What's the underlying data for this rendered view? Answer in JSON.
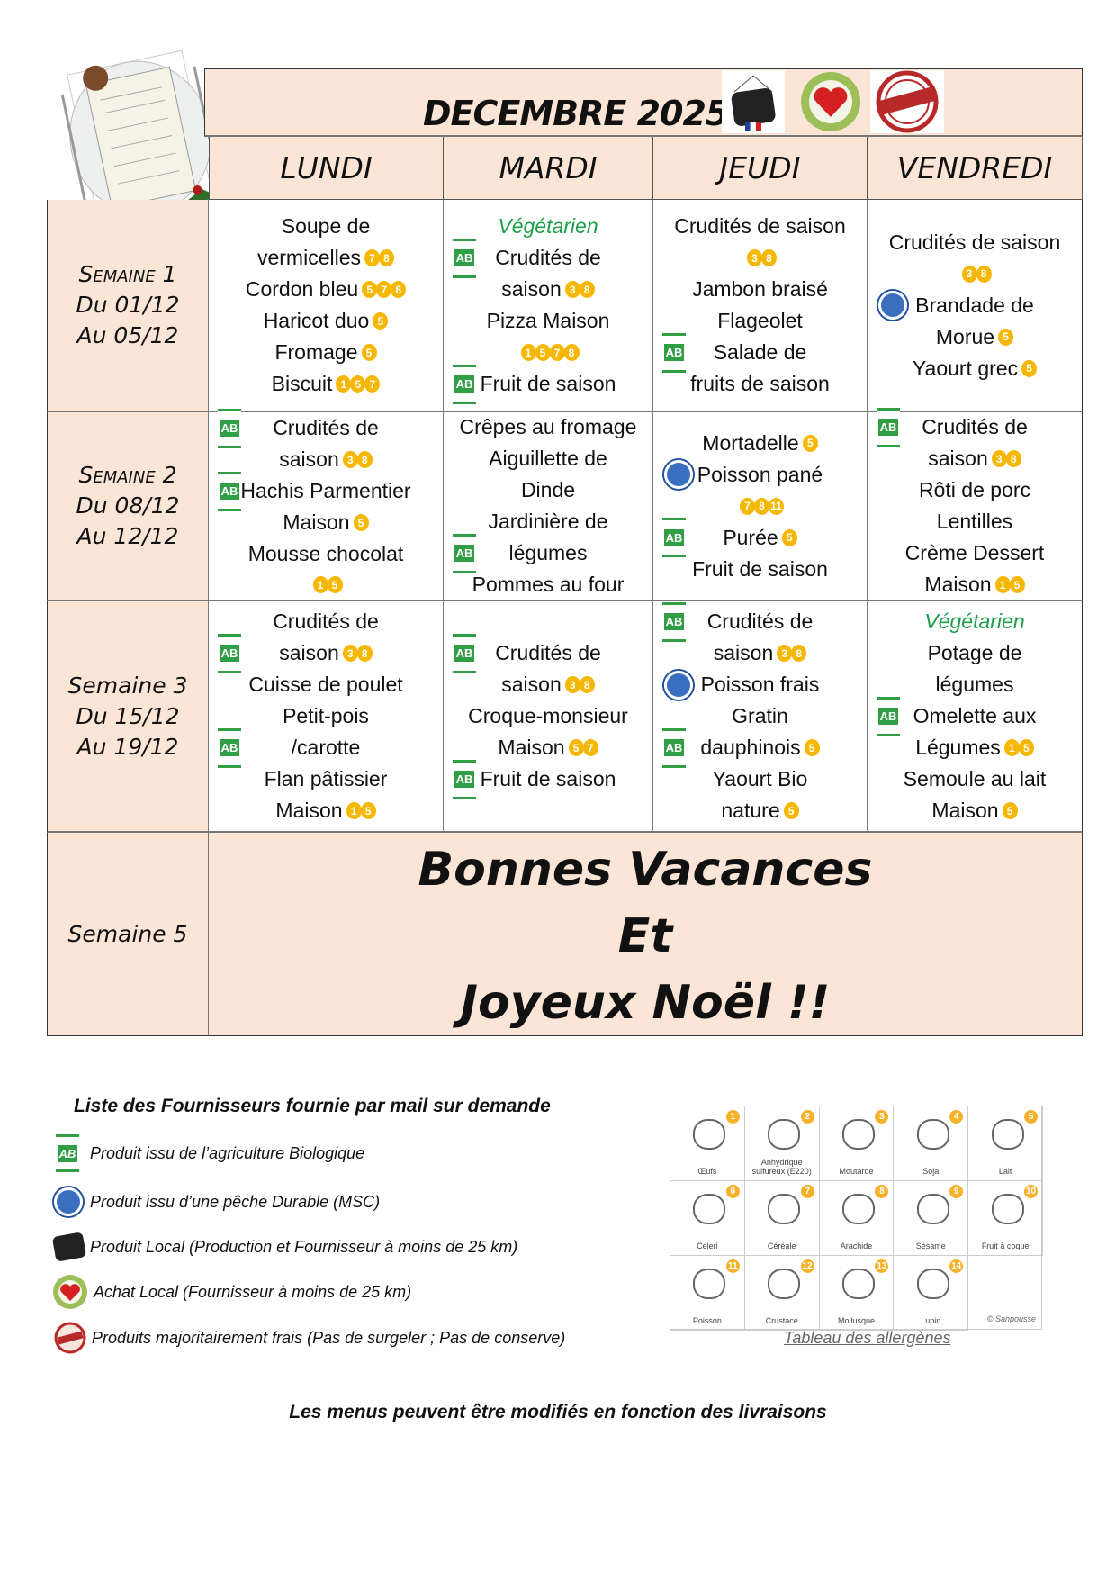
{
  "header": {
    "title": "DECEMBRE 2025",
    "logos": [
      "produits-locaux-logo",
      "moi-j-aime-acheter-local-logo",
      "produit-frais-logo"
    ]
  },
  "days": [
    "LUNDI",
    "MARDI",
    "JEUDI",
    "VENDREDI"
  ],
  "weeks": [
    {
      "label": [
        "Semaine 1",
        "Du  01/12",
        "Au  05/12"
      ],
      "smallcaps": true,
      "cells": [
        [
          {
            "t": "Soupe de"
          },
          {
            "t": "vermicelles",
            "a": [
              "7",
              "8"
            ]
          },
          {
            "t": "Cordon bleu",
            "a": [
              "5",
              "7",
              "8"
            ]
          },
          {
            "t": "Haricot duo",
            "a": [
              "5"
            ]
          },
          {
            "t": "Fromage",
            "a": [
              "5"
            ]
          },
          {
            "t": "Biscuit",
            "a": [
              "1",
              "5",
              "7"
            ]
          }
        ],
        [
          {
            "t": "Végétarien",
            "green": true
          },
          {
            "t": "Crudités de",
            "i": "bio"
          },
          {
            "t": "saison",
            "a": [
              "3",
              "8"
            ]
          },
          {
            "t": "Pizza Maison"
          },
          {
            "t": "",
            "a": [
              "1",
              "5",
              "7",
              "8"
            ]
          },
          {
            "t": "Fruit de saison",
            "i": "bio"
          }
        ],
        [
          {
            "t": "Crudités de saison"
          },
          {
            "t": "",
            "a": [
              "3",
              "8"
            ]
          },
          {
            "t": "Jambon braisé"
          },
          {
            "t": "Flageolet"
          },
          {
            "t": "Salade de",
            "i": "bio"
          },
          {
            "t": "fruits de saison"
          }
        ],
        [
          {
            "t": "Crudités de saison"
          },
          {
            "t": "",
            "a": [
              "3",
              "8"
            ]
          },
          {
            "t": "Brandade de",
            "i": "msc"
          },
          {
            "t": "Morue",
            "a": [
              "5"
            ]
          },
          {
            "t": "Yaourt grec",
            "a": [
              "5"
            ]
          }
        ]
      ]
    },
    {
      "label": [
        "Semaine 2",
        "Du  08/12",
        "Au  12/12"
      ],
      "smallcaps": true,
      "cells": [
        [
          {
            "t": "Crudités de",
            "i": "bio"
          },
          {
            "t": "saison",
            "a": [
              "3",
              "8"
            ]
          },
          {
            "t": "Hachis Parmentier",
            "i": "bio"
          },
          {
            "t": "Maison",
            "a": [
              "5"
            ]
          },
          {
            "t": "Mousse chocolat"
          },
          {
            "t": "",
            "a": [
              "1",
              "5"
            ]
          }
        ],
        [
          {
            "t": "Crêpes au fromage"
          },
          {
            "t": "Aiguillette de"
          },
          {
            "t": "Dinde"
          },
          {
            "t": "Jardinière de"
          },
          {
            "t": "légumes",
            "i": "bio"
          },
          {
            "t": "Pommes au four"
          }
        ],
        [
          {
            "t": "Mortadelle",
            "a": [
              "5"
            ]
          },
          {
            "t": "Poisson pané",
            "i": "msc"
          },
          {
            "t": "",
            "a": [
              "7",
              "8",
              "11"
            ]
          },
          {
            "t": "Purée",
            "a": [
              "5"
            ],
            "i": "bio"
          },
          {
            "t": "Fruit de saison"
          }
        ],
        [
          {
            "t": "Crudités de",
            "i": "bio"
          },
          {
            "t": "saison",
            "a": [
              "3",
              "8"
            ]
          },
          {
            "t": "Rôti de porc"
          },
          {
            "t": "Lentilles"
          },
          {
            "t": "Crème Dessert"
          },
          {
            "t": "Maison",
            "a": [
              "1",
              "5"
            ]
          }
        ]
      ]
    },
    {
      "label": [
        "Semaine 3",
        "Du  15/12",
        "Au  19/12"
      ],
      "smallcaps": false,
      "cells": [
        [
          {
            "t": "Crudités de"
          },
          {
            "t": "saison",
            "a": [
              "3",
              "8"
            ],
            "i": "bio"
          },
          {
            "t": "Cuisse de poulet"
          },
          {
            "t": "Petit-pois"
          },
          {
            "t": "/carotte",
            "i": "bio"
          },
          {
            "t": "Flan pâtissier"
          },
          {
            "t": "Maison",
            "a": [
              "1",
              "5"
            ]
          }
        ],
        [
          {
            "t": "Crudités de",
            "i": "bio"
          },
          {
            "t": "saison",
            "a": [
              "3",
              "8"
            ]
          },
          {
            "t": "Croque-monsieur"
          },
          {
            "t": "Maison",
            "a": [
              "5",
              "7"
            ]
          },
          {
            "t": "Fruit de saison",
            "i": "bio"
          }
        ],
        [
          {
            "t": "Crudités de",
            "i": "bio"
          },
          {
            "t": "saison",
            "a": [
              "3",
              "8"
            ]
          },
          {
            "t": "Poisson frais",
            "i": "msc"
          },
          {
            "t": "Gratin"
          },
          {
            "t": "dauphinois",
            "a": [
              "5"
            ],
            "i": "bio"
          },
          {
            "t": "Yaourt Bio"
          },
          {
            "t": "nature",
            "a": [
              "5"
            ]
          }
        ],
        [
          {
            "t": "Végétarien",
            "green": true
          },
          {
            "t": "Potage de"
          },
          {
            "t": "légumes"
          },
          {
            "t": "Omelette aux",
            "i": "bio"
          },
          {
            "t": "Légumes",
            "a": [
              "1",
              "5"
            ]
          },
          {
            "t": "Semoule au lait"
          },
          {
            "t": "Maison",
            "a": [
              "5"
            ]
          }
        ]
      ]
    }
  ],
  "week5": {
    "label": "Semaine 5",
    "message": [
      "Bonnes  Vacances",
      "Et",
      "Joyeux Noël !!"
    ]
  },
  "legend": {
    "title": "Liste des Fournisseurs fournie par mail sur demande",
    "items": [
      {
        "icon": "bio-icon",
        "text": "Produit issu de l’agriculture Biologique"
      },
      {
        "icon": "msc-icon",
        "text": "Produit issu d’une pêche Durable (MSC)"
      },
      {
        "icon": "produits-locaux-icon",
        "text": "Produit Local  (Production et Fournisseur à moins de 25 km)"
      },
      {
        "icon": "acheter-local-icon",
        "text": "Achat Local (Fournisseur à moins de 25 km)"
      },
      {
        "icon": "produit-frais-icon",
        "text": "Produits majoritairement frais (Pas de  surgeler ; Pas de conserve)"
      }
    ]
  },
  "allergens": {
    "items": [
      {
        "n": "1",
        "label": "Œufs"
      },
      {
        "n": "2",
        "label": "Anhydrique sulfureux (E220)"
      },
      {
        "n": "3",
        "label": "Moutarde"
      },
      {
        "n": "4",
        "label": "Soja"
      },
      {
        "n": "5",
        "label": "Lait"
      },
      {
        "n": "6",
        "label": "Celeri"
      },
      {
        "n": "7",
        "label": "Céréale"
      },
      {
        "n": "8",
        "label": "Arachide"
      },
      {
        "n": "9",
        "label": "Sésame"
      },
      {
        "n": "10",
        "label": "Fruit à coque"
      },
      {
        "n": "11",
        "label": "Poisson"
      },
      {
        "n": "12",
        "label": "Crustacé"
      },
      {
        "n": "13",
        "label": "Mollusque"
      },
      {
        "n": "14",
        "label": "Lupin"
      }
    ],
    "credit": "© Sanpousse",
    "caption": "Tableau des allergènes"
  },
  "footer": "Les menus peuvent être modifiés en fonction des livraisons",
  "colors": {
    "peach": "#fbe5d6",
    "allergen_badge": "#f6b700",
    "vegetarian": "#1ea04a",
    "bio": "#2f9e44"
  }
}
